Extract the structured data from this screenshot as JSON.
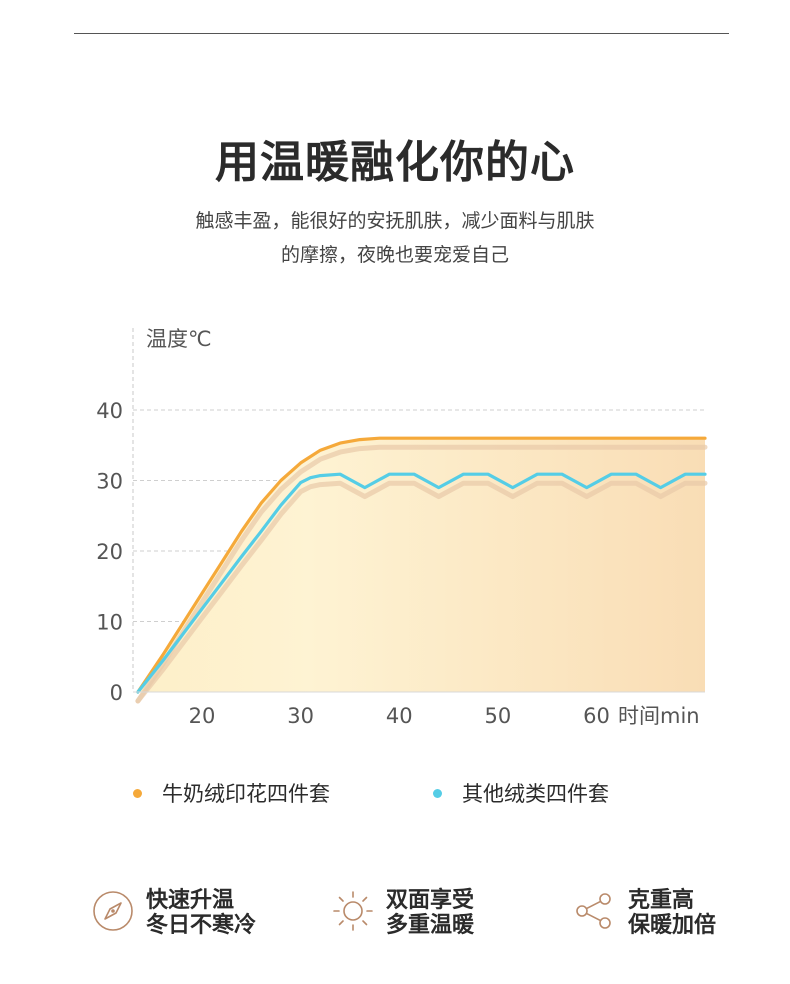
{
  "headline": "用温暖融化你的心",
  "subtitle_line1": "触感丰盈，能很好的安抚肌肤，减少面料与肌肤",
  "subtitle_line2": "的摩擦，夜晚也要宠爱自己",
  "colors": {
    "accent_orange": "#F5A93A",
    "accent_blue": "#55CDE6",
    "icon_brown": "#B98A6A"
  },
  "chart_data": {
    "type": "line",
    "ylabel": "温度℃",
    "xlabel": "时间min",
    "xlim": [
      13,
      71
    ],
    "ylim": [
      0,
      40
    ],
    "x_ticks": [
      20,
      30,
      40,
      50,
      60
    ],
    "y_ticks": [
      0,
      10,
      20,
      30,
      40
    ],
    "grid": true,
    "legend_position": "bottom",
    "series": [
      {
        "name": "牛奶绒印花四件套",
        "color": "#F5A93A",
        "x": [
          13.5,
          16,
          18,
          20,
          22,
          24,
          26,
          28,
          30,
          32,
          34,
          36,
          38,
          40,
          45,
          50,
          55,
          60,
          65,
          70,
          71
        ],
        "y": [
          0,
          5.2,
          9.6,
          14,
          18.4,
          22.8,
          26.8,
          30,
          32.5,
          34.3,
          35.3,
          35.8,
          36,
          36,
          36,
          36,
          36,
          36,
          36,
          36,
          36
        ]
      },
      {
        "name": "其他绒类四件套",
        "color": "#55CDE6",
        "x": [
          13.5,
          16,
          18,
          20,
          22,
          24,
          26,
          28,
          30,
          31,
          32,
          34,
          36.5,
          39,
          41.5,
          44,
          46.5,
          49,
          51.5,
          54,
          56.5,
          59,
          61.5,
          64,
          66.5,
          69,
          71
        ],
        "y": [
          0,
          4.4,
          8.1,
          11.8,
          15.5,
          19.2,
          22.8,
          26.5,
          29.7,
          30.4,
          30.7,
          30.9,
          29,
          30.9,
          30.9,
          29,
          30.9,
          30.9,
          29,
          30.9,
          30.9,
          29,
          30.9,
          30.9,
          29,
          30.9,
          30.9
        ]
      }
    ]
  },
  "features": [
    {
      "icon": "compass-icon",
      "line1": "快速升温",
      "line2": "冬日不寒冷"
    },
    {
      "icon": "sun-icon",
      "line1": "双面享受",
      "line2": "多重温暖"
    },
    {
      "icon": "share-icon",
      "line1": "克重高",
      "line2": "保暖加倍"
    }
  ]
}
